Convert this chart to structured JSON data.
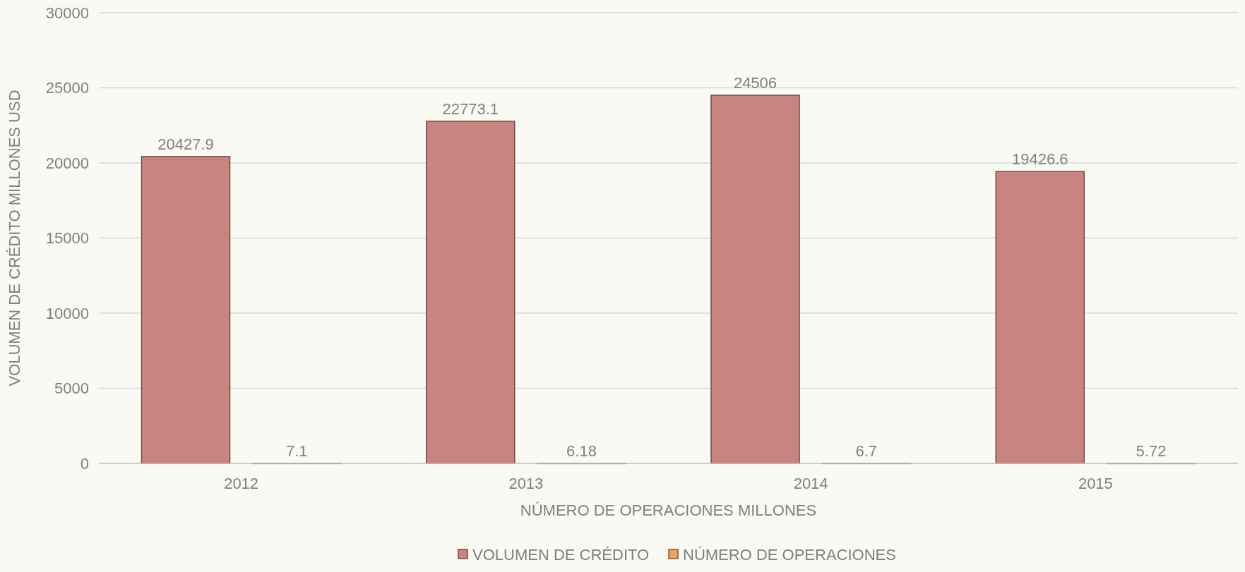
{
  "chart_data": {
    "type": "bar",
    "categories": [
      "2012",
      "2013",
      "2014",
      "2015"
    ],
    "series": [
      {
        "name": "VOLUMEN DE CRÉDITO",
        "color": "#c98482",
        "values": [
          20427.9,
          22773.1,
          24506,
          19426.6
        ]
      },
      {
        "name": "NÚMERO DE OPERACIONES",
        "color": "#f0a060",
        "values": [
          7.1,
          6.18,
          6.7,
          5.72
        ]
      }
    ],
    "ylim": [
      0,
      30000
    ],
    "yticks": [
      0,
      5000,
      10000,
      15000,
      20000,
      25000,
      30000
    ],
    "grid": "y",
    "legend": "bottom",
    "data_labels": true,
    "xlabel": "NÚMERO DE OPERACIONES  MILLONES",
    "ylabel": "VOLUMEN DE CRÉDITO  MILLONES USD"
  }
}
